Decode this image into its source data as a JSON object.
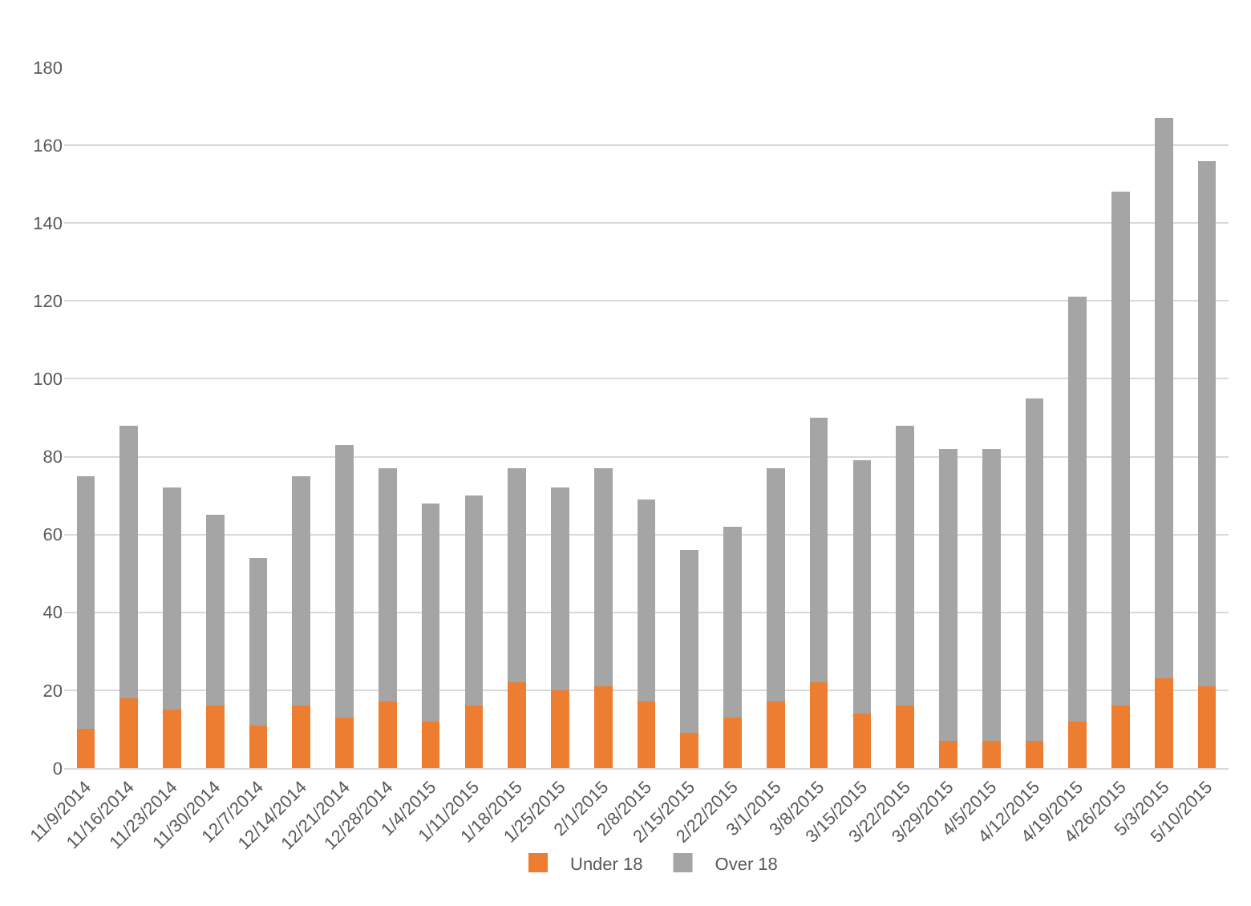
{
  "chart_data": {
    "type": "bar",
    "stacked": true,
    "categories": [
      "11/9/2014",
      "11/16/2014",
      "11/23/2014",
      "11/30/2014",
      "12/7/2014",
      "12/14/2014",
      "12/21/2014",
      "12/28/2014",
      "1/4/2015",
      "1/11/2015",
      "1/18/2015",
      "1/25/2015",
      "2/1/2015",
      "2/8/2015",
      "2/15/2015",
      "2/22/2015",
      "3/1/2015",
      "3/8/2015",
      "3/15/2015",
      "3/22/2015",
      "3/29/2015",
      "4/5/2015",
      "4/12/2015",
      "4/19/2015",
      "4/26/2015",
      "5/3/2015",
      "5/10/2015"
    ],
    "series": [
      {
        "name": "Under 18",
        "color": "#ed7d31",
        "values": [
          10,
          18,
          15,
          16,
          11,
          16,
          13,
          17,
          12,
          16,
          22,
          20,
          21,
          17,
          9,
          13,
          17,
          22,
          14,
          16,
          7,
          7,
          7,
          12,
          16,
          23,
          21
        ]
      },
      {
        "name": "Over 18",
        "color": "#a5a5a5",
        "values": [
          65,
          70,
          57,
          49,
          43,
          59,
          70,
          60,
          56,
          54,
          55,
          52,
          56,
          52,
          47,
          49,
          60,
          68,
          65,
          72,
          75,
          75,
          88,
          109,
          132,
          144,
          135
        ]
      }
    ],
    "ylim": [
      0,
      180
    ],
    "yticks": [
      0,
      20,
      40,
      60,
      80,
      100,
      120,
      140,
      160,
      180
    ],
    "grid": "y",
    "legend": "bottom"
  }
}
